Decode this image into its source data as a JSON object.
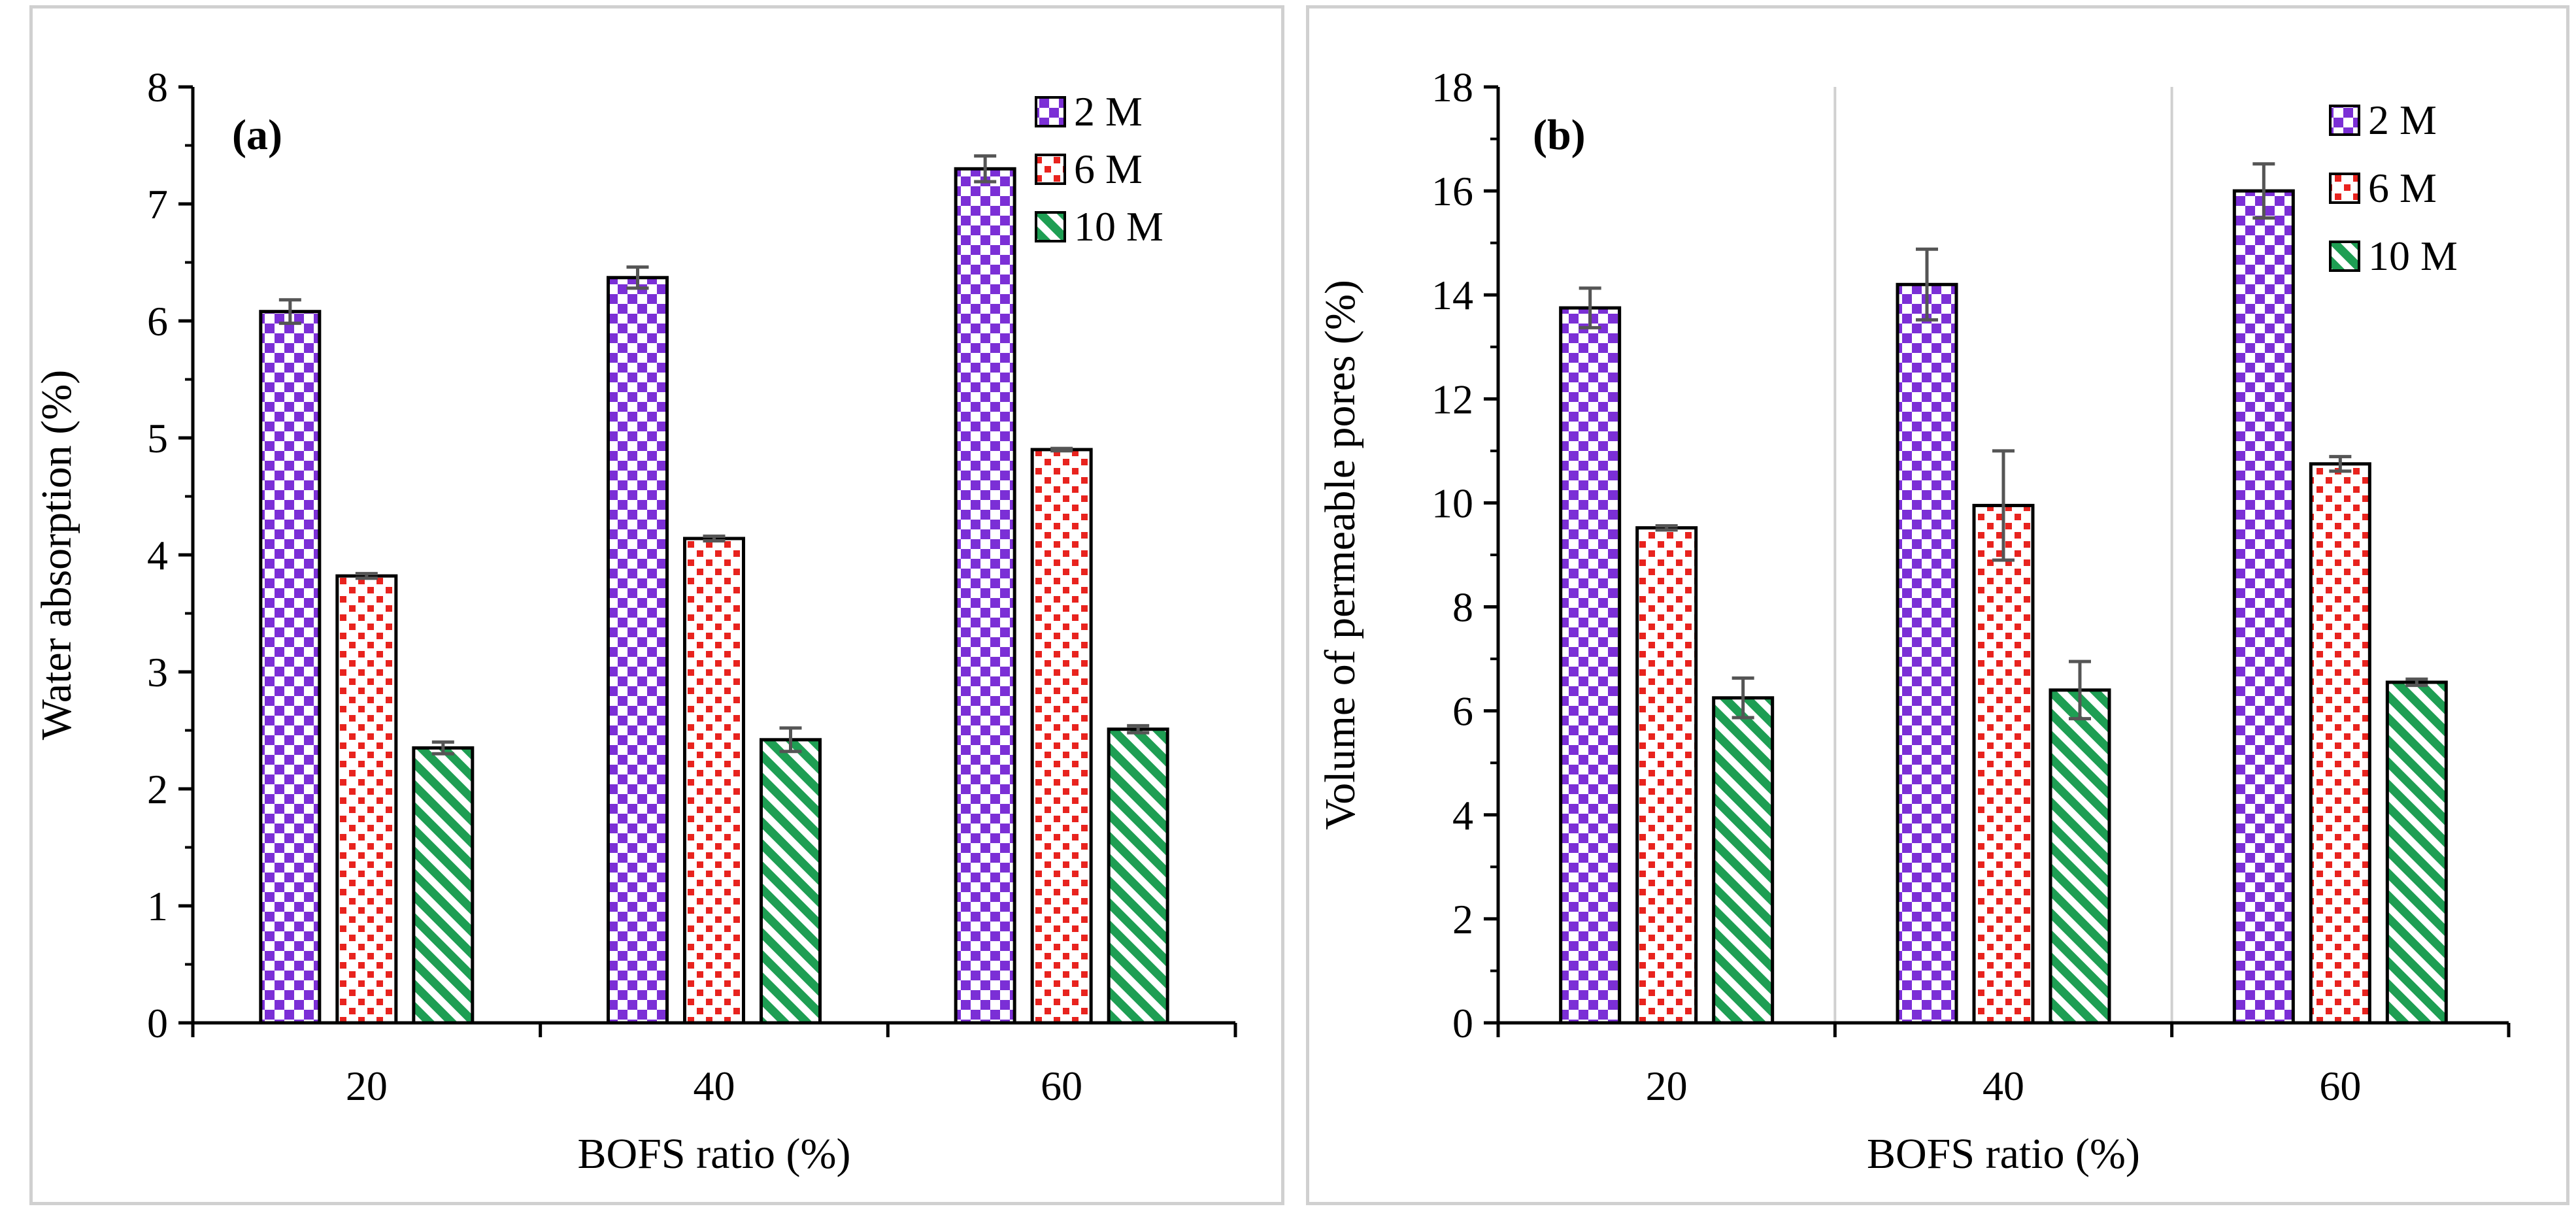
{
  "colors": {
    "series_2M": "#7b2fd6",
    "series_6M": "#e8231e",
    "series_10M": "#1e9e53",
    "axis": "#000000",
    "frame": "#d0d0d0",
    "grid": "#d0d0d0",
    "errorbar": "#555555"
  },
  "chart_data": [
    {
      "type": "bar",
      "panel_label": "(a)",
      "xlabel": "BOFS ratio (%)",
      "ylabel": "Water absorption (%)",
      "categories": [
        "20",
        "40",
        "60"
      ],
      "ylim": [
        0,
        8
      ],
      "ytick_step": 1,
      "yticks": [
        "0",
        "1",
        "2",
        "3",
        "4",
        "5",
        "6",
        "7",
        "8"
      ],
      "grid": false,
      "legend_position": "top-right",
      "series": [
        {
          "name": "2 M",
          "pattern": "checker",
          "values": [
            6.08,
            6.37,
            7.3
          ],
          "errors": [
            0.1,
            0.09,
            0.11
          ]
        },
        {
          "name": "6 M",
          "pattern": "dots",
          "values": [
            3.82,
            4.14,
            4.9
          ],
          "errors": [
            0.02,
            0.02,
            0.01
          ]
        },
        {
          "name": "10 M",
          "pattern": "stripes",
          "values": [
            2.35,
            2.42,
            2.51
          ],
          "errors": [
            0.05,
            0.1,
            0.03
          ]
        }
      ]
    },
    {
      "type": "bar",
      "panel_label": "(b)",
      "xlabel": "BOFS ratio (%)",
      "ylabel": "Volume of permeable pores (%)",
      "categories": [
        "20",
        "40",
        "60"
      ],
      "ylim": [
        0,
        18
      ],
      "ytick_step": 2,
      "yticks": [
        "0",
        "2",
        "4",
        "6",
        "8",
        "10",
        "12",
        "14",
        "16",
        "18"
      ],
      "grid": true,
      "legend_position": "top-right",
      "series": [
        {
          "name": "2 M",
          "pattern": "checker",
          "values": [
            13.75,
            14.2,
            16.0
          ],
          "errors": [
            0.38,
            0.68,
            0.52
          ]
        },
        {
          "name": "6 M",
          "pattern": "dots",
          "values": [
            9.52,
            9.95,
            10.75
          ],
          "errors": [
            0.04,
            1.05,
            0.14
          ]
        },
        {
          "name": "10 M",
          "pattern": "stripes",
          "values": [
            6.25,
            6.4,
            6.55
          ],
          "errors": [
            0.38,
            0.55,
            0.06
          ]
        }
      ]
    }
  ]
}
